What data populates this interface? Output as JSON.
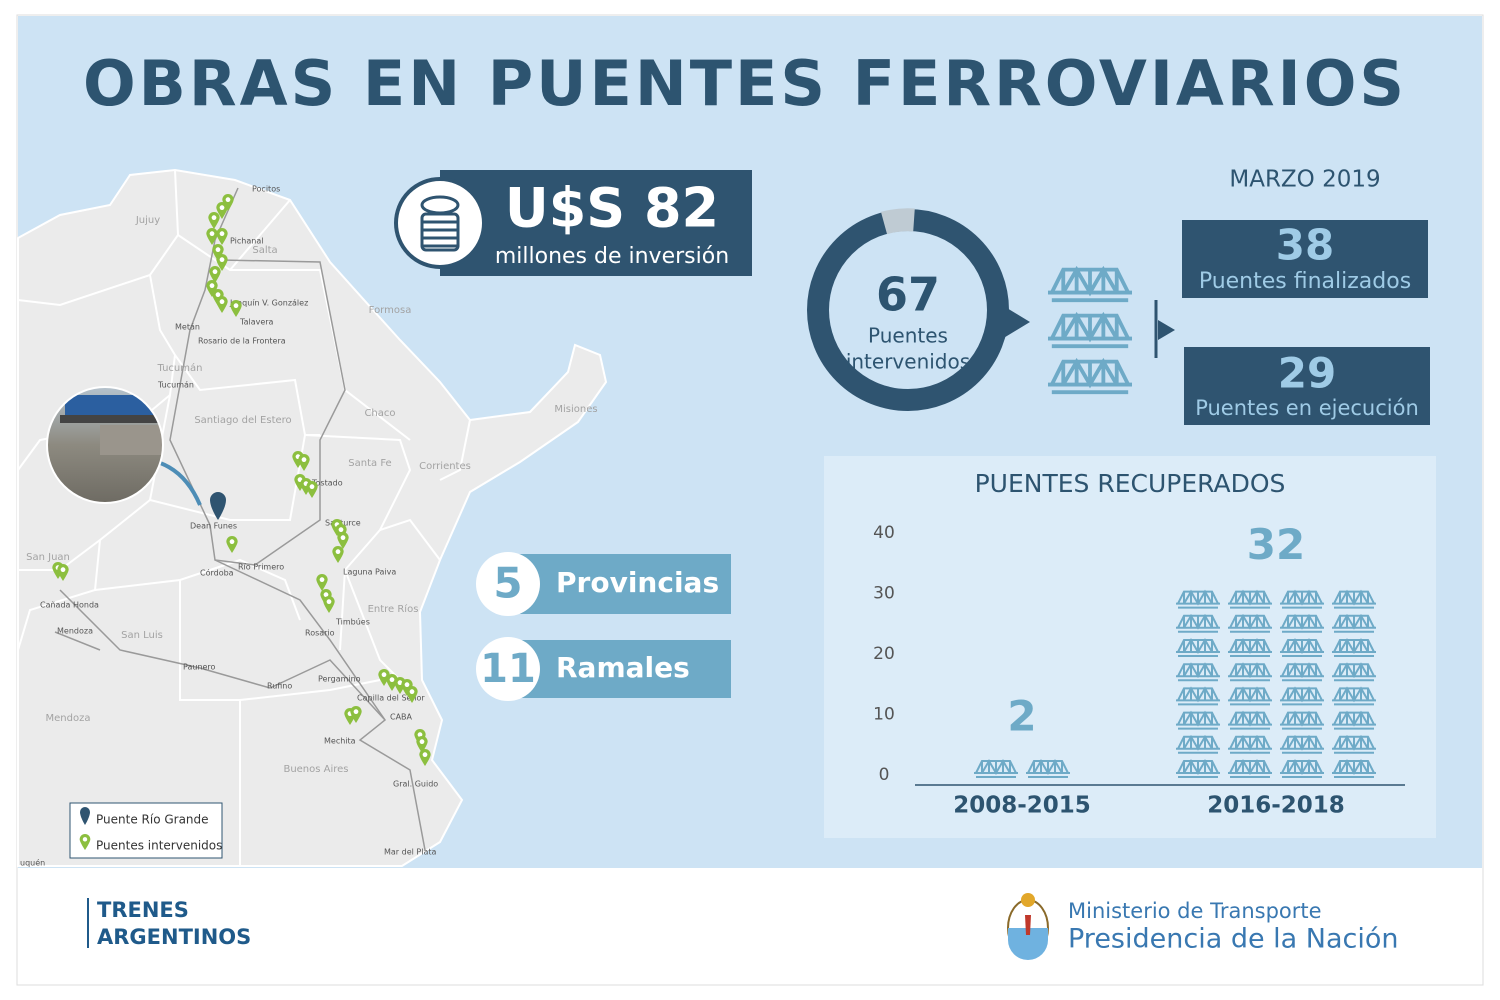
{
  "header": {
    "title": "OBRAS EN PUENTES FERROVIARIOS",
    "date": "MARZO 2019"
  },
  "investment": {
    "amount": "U$S 82",
    "caption": "millones de inversión"
  },
  "summary": {
    "total": {
      "number": "67",
      "line1": "Puentes",
      "line2": "intervenidos"
    },
    "finished": {
      "number": "38",
      "label": "Puentes finalizados"
    },
    "in_progress": {
      "number": "29",
      "label": "Puentes en ejecución"
    }
  },
  "counts": [
    {
      "number": "5",
      "label": "Provincias"
    },
    {
      "number": "11",
      "label": "Ramales"
    }
  ],
  "chart_data": {
    "type": "bar",
    "title": "PUENTES RECUPERADOS",
    "categories": [
      "2008-2015",
      "2016-2018"
    ],
    "values": [
      2,
      32
    ],
    "color": "#6eaac7",
    "ylim": [
      0,
      40
    ],
    "yticks": [
      0,
      10,
      20,
      30,
      40
    ],
    "grid": false
  },
  "map": {
    "labels": [
      "Pocitos",
      "Jujuy",
      "Salta",
      "Pichanal",
      "Joaquín V. González",
      "Formosa",
      "Metán",
      "Talavera",
      "Rosario de la Frontera",
      "Tucumán",
      "Tucumán",
      "Santiago del Estero",
      "Chaco",
      "Misiones",
      "Corrientes",
      "Santa Fe",
      "Tostado",
      "Santurce",
      "Dean Funes",
      "Córdoba",
      "Río Primero",
      "Laguna Paiva",
      "San Juan",
      "Cañada Honda",
      "Mendoza",
      "San Luis",
      "Timbúes",
      "Rosario",
      "Entre Ríos",
      "Paunero",
      "Rufino",
      "Pergamino",
      "Capilla del Señor",
      "CABA",
      "Mendoza",
      "Mechita",
      "Buenos Aires",
      "Gral. Guido",
      "Mar del Plata",
      "uquén"
    ],
    "legend": [
      "Puente Río Grande",
      "Puentes intervenidos"
    ]
  },
  "footer": {
    "brand_line1": "TRENES",
    "brand_line2": "ARGENTINOS",
    "ministry": "Ministerio de Transporte",
    "presidency": "Presidencia de la Nación"
  }
}
